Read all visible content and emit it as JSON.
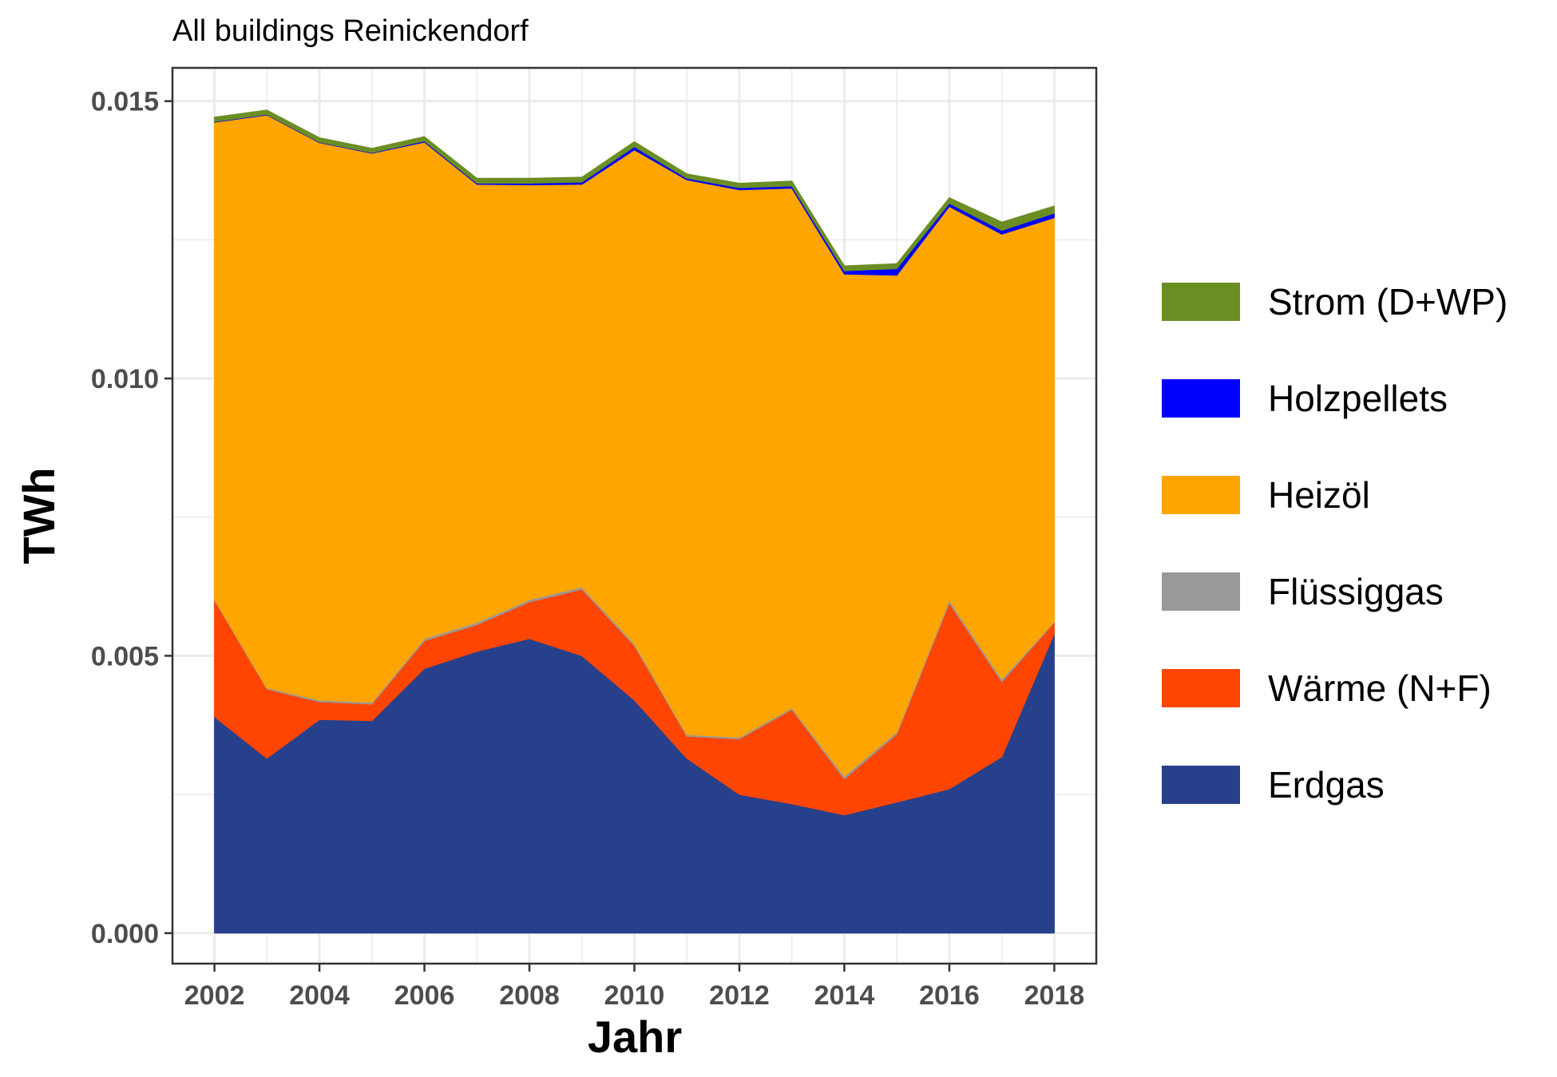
{
  "chart_data": {
    "type": "area",
    "stacked": true,
    "title": "All buildings Reinickendorf",
    "xlabel": "Jahr",
    "ylabel": "TWh",
    "x": [
      2002,
      2003,
      2004,
      2005,
      2006,
      2007,
      2008,
      2009,
      2010,
      2011,
      2012,
      2013,
      2014,
      2015,
      2016,
      2017,
      2018
    ],
    "xlim": [
      2001.2,
      2018.8
    ],
    "ylim": [
      -0.00055,
      0.0156
    ],
    "x_ticks": [
      2002,
      2004,
      2006,
      2008,
      2010,
      2012,
      2014,
      2016,
      2018
    ],
    "x_tick_labels": [
      "2002",
      "2004",
      "2006",
      "2008",
      "2010",
      "2012",
      "2014",
      "2016",
      "2018"
    ],
    "y_ticks": [
      0.0,
      0.005,
      0.01,
      0.015
    ],
    "y_tick_labels": [
      "0.000",
      "0.005",
      "0.010",
      "0.015"
    ],
    "grid": true,
    "legend_position": "right",
    "series": [
      {
        "name": "Erdgas",
        "color": "#27408b",
        "values": [
          0.0039,
          0.00315,
          0.00385,
          0.00383,
          0.00477,
          0.00508,
          0.00531,
          0.005,
          0.0042,
          0.00315,
          0.0025,
          0.00233,
          0.00213,
          0.00236,
          0.0026,
          0.00318,
          0.0054
        ]
      },
      {
        "name": "Wärme (N+F)",
        "color": "#ff4500",
        "values": [
          0.0021,
          0.00125,
          0.00032,
          0.0003,
          0.0005,
          0.00048,
          0.00066,
          0.0012,
          0.00098,
          0.0004,
          0.001,
          0.0017,
          0.00065,
          0.00123,
          0.00335,
          0.00135,
          0.0002
        ]
      },
      {
        "name": "Flüssiggas",
        "color": "#999999",
        "values": [
          2e-05,
          2e-05,
          3e-05,
          3e-05,
          4e-05,
          4e-05,
          4e-05,
          4e-05,
          4e-05,
          3e-05,
          3e-05,
          3e-05,
          5e-05,
          4e-05,
          5e-05,
          5e-05,
          2e-05
        ]
      },
      {
        "name": "Heizöl",
        "color": "#ffa500",
        "values": [
          0.0086,
          0.01033,
          0.01005,
          0.0099,
          0.00895,
          0.0079,
          0.00748,
          0.00726,
          0.0089,
          0.01,
          0.00987,
          0.00937,
          0.00905,
          0.00823,
          0.0071,
          0.00802,
          0.00728
        ]
      },
      {
        "name": "Holzpellets",
        "color": "#0000ff",
        "values": [
          1e-05,
          1e-05,
          1e-05,
          1e-05,
          2e-05,
          2e-05,
          3e-05,
          4e-05,
          6e-05,
          3e-05,
          4e-05,
          4e-05,
          6e-05,
          0.00012,
          6e-05,
          7e-05,
          8e-05
        ]
      },
      {
        "name": "Strom (D+WP)",
        "color": "#6b8e23",
        "values": [
          8e-05,
          8e-05,
          8e-05,
          8e-05,
          8e-05,
          9e-05,
          9e-05,
          9e-05,
          9e-05,
          8e-05,
          8e-05,
          9e-05,
          9e-05,
          9e-05,
          0.0001,
          0.00015,
          0.00013
        ]
      }
    ],
    "legend_order": [
      "Strom (D+WP)",
      "Holzpellets",
      "Heizöl",
      "Flüssiggas",
      "Wärme (N+F)",
      "Erdgas"
    ]
  }
}
